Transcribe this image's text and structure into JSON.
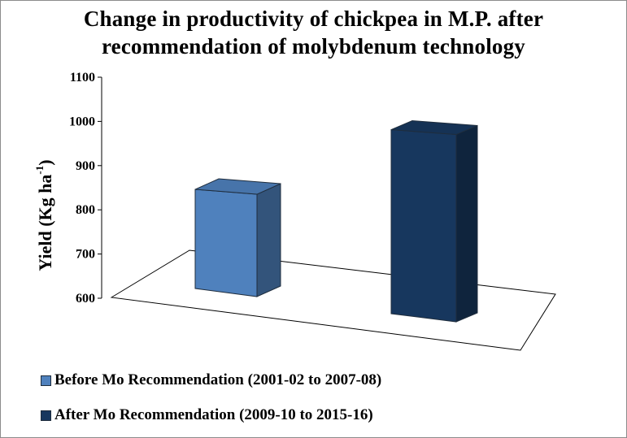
{
  "chart_data": {
    "type": "bar",
    "title_lines": [
      "Change in productivity of chickpea in M.P. after",
      "recommendation of molybdenum technology"
    ],
    "ylabel_main": "Yield (Kg ha",
    "ylabel_sup": "-1",
    "ylabel_end": ")",
    "ylim": [
      600,
      1100
    ],
    "yticks": [
      600,
      700,
      800,
      900,
      1000,
      1100
    ],
    "grid": false,
    "legend_position": "bottom",
    "series": [
      {
        "name": "Before Mo Recommendation (2001-02 to 2007-08)",
        "value": 845,
        "color": "#4f81bd"
      },
      {
        "name": "After Mo Recommendation (2009-10 to 2015-16)",
        "value": 1000,
        "color": "#17375e"
      }
    ]
  }
}
